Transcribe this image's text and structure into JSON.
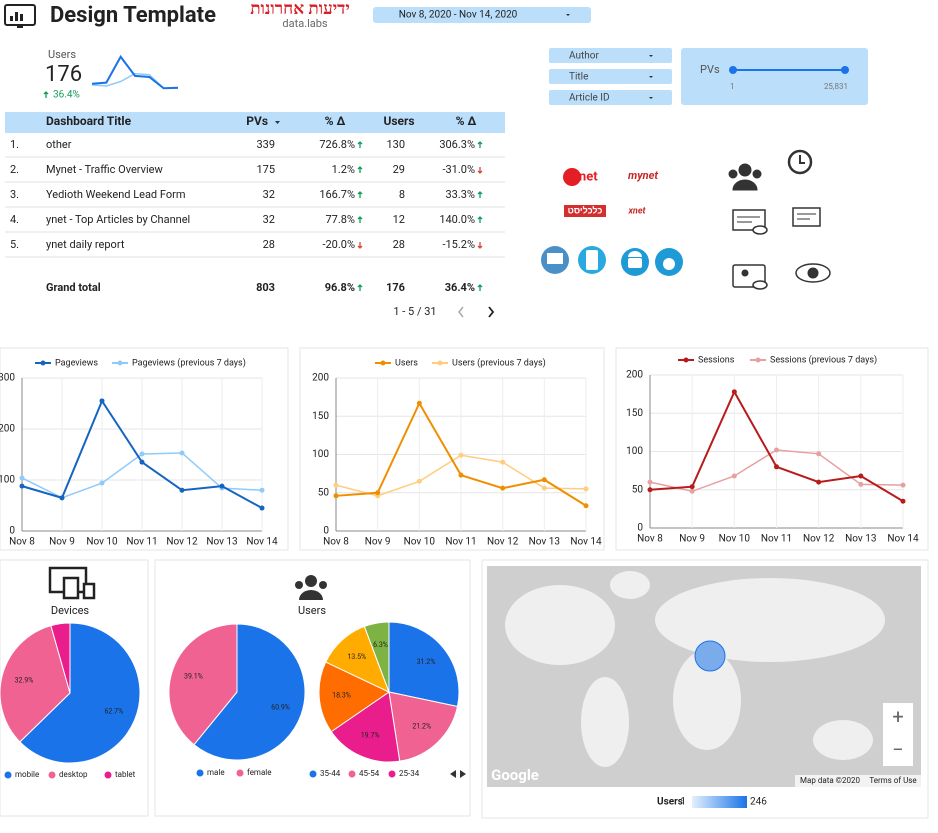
{
  "header": {
    "title": "Design Template",
    "logo": "ידיעות אחרונות",
    "logo_sub": "data.labs",
    "date_range": "Nov 8, 2020 - Nov 14, 2020"
  },
  "scorecard": {
    "label": "Users",
    "value": 176,
    "delta": "36.4%",
    "sparkline": {
      "ylim": [
        0,
        200
      ],
      "values": [
        50,
        55,
        170,
        85,
        80,
        30,
        32
      ],
      "previous": [
        45,
        40,
        60,
        95,
        90,
        30,
        30
      ]
    }
  },
  "filters": [
    "Author",
    "Title",
    "Article ID"
  ],
  "slider": {
    "label": "PVs",
    "min": 1,
    "max": "25,831"
  },
  "table": {
    "headers": [
      "Dashboard Title",
      "PVs",
      "% Δ",
      "Users",
      "% Δ"
    ],
    "rows": [
      [
        "1.",
        "other",
        339,
        "726.8%",
        130,
        "306.3%"
      ],
      [
        "2.",
        "Mynet - Traffic Overview",
        175,
        "1.2%",
        29,
        "-31.0%"
      ],
      [
        "3.",
        "Yedioth Weekend Lead Form",
        32,
        "166.7%",
        8,
        "33.3%"
      ],
      [
        "4.",
        "ynet - Top Articles by Channel",
        32,
        "77.8%",
        12,
        "140.0%"
      ],
      [
        "5.",
        "ynet daily report",
        28,
        "-20.0%",
        28,
        "-15.2%"
      ]
    ],
    "total": [
      "Grand total",
      803,
      "96.8%",
      176,
      "36.4%"
    ],
    "pagination": "1 - 5 / 31"
  },
  "brands": [
    "ynet",
    "mynet",
    "כלכליסט",
    "xnet"
  ],
  "chart_data": [
    {
      "type": "line",
      "categories": [
        "Nov 8",
        "Nov 9",
        "Nov 10",
        "Nov 11",
        "Nov 12",
        "Nov 13",
        "Nov 14"
      ],
      "ylim": [
        0,
        300
      ],
      "yticks": [
        0,
        100,
        200,
        300
      ],
      "grid": true,
      "series": [
        {
          "name": "Pageviews",
          "color": "#1565c0",
          "values": [
            88,
            65,
            255,
            135,
            80,
            88,
            45
          ]
        },
        {
          "name": "Pageviews (previous 7 days)",
          "color": "#90caf9",
          "values": [
            104,
            65,
            94,
            151,
            153,
            84,
            80
          ]
        }
      ]
    },
    {
      "type": "line",
      "categories": [
        "Nov 8",
        "Nov 9",
        "Nov 10",
        "Nov 11",
        "Nov 12",
        "Nov 13",
        "Nov 14"
      ],
      "ylim": [
        0,
        200
      ],
      "yticks": [
        0,
        50,
        100,
        150,
        200
      ],
      "grid": true,
      "series": [
        {
          "name": "Users",
          "color": "#ef8f00",
          "values": [
            46,
            50,
            167,
            73,
            56,
            67,
            33
          ]
        },
        {
          "name": "Users (previous 7 days)",
          "color": "#ffcc80",
          "values": [
            60,
            46,
            65,
            99,
            90,
            56,
            55
          ]
        }
      ]
    },
    {
      "type": "line",
      "categories": [
        "Nov 8",
        "Nov 9",
        "Nov 10",
        "Nov 11",
        "Nov 12",
        "Nov 13",
        "Nov 14"
      ],
      "ylim": [
        0,
        200
      ],
      "yticks": [
        0,
        50,
        100,
        150,
        200
      ],
      "grid": true,
      "series": [
        {
          "name": "Sessions",
          "color": "#b71c1c",
          "values": [
            50,
            54,
            178,
            80,
            60,
            68,
            35
          ]
        },
        {
          "name": "Sessions (previous 7 days)",
          "color": "#e6a0a0",
          "values": [
            60,
            48,
            68,
            102,
            97,
            57,
            56
          ]
        }
      ]
    },
    {
      "type": "pie",
      "title": "Devices",
      "categories": [
        "mobile",
        "desktop",
        "tablet"
      ],
      "values": [
        62.7,
        32.9,
        4.4
      ],
      "value_labels": [
        "62.7%",
        "32.9%",
        null
      ],
      "colors": [
        "#1a73e8",
        "#f06292",
        "#e91e8c"
      ]
    },
    {
      "type": "pie",
      "title": "Users",
      "categories": [
        "male",
        "female"
      ],
      "values": [
        60.9,
        39.1
      ],
      "value_labels": [
        "60.9%",
        "39.1%"
      ],
      "colors": [
        "#1a73e8",
        "#f06292"
      ]
    },
    {
      "type": "pie",
      "categories": [
        "35-44",
        "45-54",
        "25-34",
        null,
        null,
        null
      ],
      "values": [
        31.2,
        21.2,
        19.7,
        18.3,
        13.5,
        6.3
      ],
      "value_labels": [
        "31.2%",
        "21.2%",
        "19.7%",
        "18.3%",
        "13.5%",
        "6.3%"
      ],
      "colors": [
        "#1a73e8",
        "#f06292",
        "#e91e8c",
        "#ff6d00",
        "#ffab00",
        "#7cb342"
      ]
    }
  ],
  "map": {
    "attribution": "Google",
    "map_data": "Map data ©2020",
    "terms": "Terms of Use",
    "zoom_in": "+",
    "zoom_out": "−",
    "legend_label": "Users",
    "legend_min": 1,
    "legend_max": 246
  }
}
